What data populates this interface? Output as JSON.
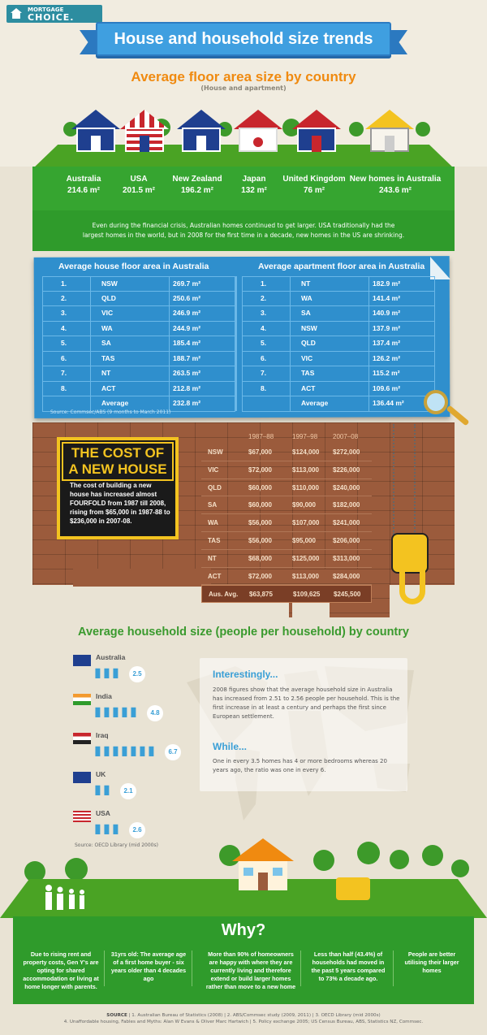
{
  "brand": {
    "line1": "MORTGAGE",
    "line2": "CHOICE."
  },
  "title": "House and household size trends",
  "floor": {
    "title": "Average floor area size by country",
    "subtitle": "(House and apartment)",
    "countries": [
      {
        "name": "Australia",
        "value": "214.6 m²",
        "flag": "australia-flag"
      },
      {
        "name": "USA",
        "value": "201.5 m²",
        "flag": "usa-flag"
      },
      {
        "name": "New Zealand",
        "value": "196.2 m²",
        "flag": "new-zealand-flag"
      },
      {
        "name": "Japan",
        "value": "132 m²",
        "flag": "japan-flag"
      },
      {
        "name": "United Kingdom",
        "value": "76 m²",
        "flag": "uk-flag"
      },
      {
        "name": "New homes in Australia",
        "value": "243.6 m²",
        "flag": "blueprint-house"
      }
    ],
    "paragraph": "Even during the financial crisis, Australian homes continued to get larger. USA traditionally had the largest homes in the world, but in 2008 for the first time in a decade, new homes in the US are shrinking."
  },
  "tables": {
    "house": {
      "title": "Average house floor area in Australia",
      "rows": [
        [
          "1.",
          "NSW",
          "269.7 m²"
        ],
        [
          "2.",
          "QLD",
          "250.6 m²"
        ],
        [
          "3.",
          "VIC",
          "246.9 m²"
        ],
        [
          "4.",
          "WA",
          "244.9 m²"
        ],
        [
          "5.",
          "SA",
          "185.4 m²"
        ],
        [
          "6.",
          "TAS",
          "188.7 m²"
        ],
        [
          "7.",
          "NT",
          "263.5 m²"
        ],
        [
          "8.",
          "ACT",
          "212.8 m²"
        ]
      ],
      "avg": [
        "",
        "Average",
        "232.8 m²"
      ]
    },
    "apartment": {
      "title": "Average apartment floor area in Australia",
      "rows": [
        [
          "1.",
          "NT",
          "182.9 m²"
        ],
        [
          "2.",
          "WA",
          "141.4 m²"
        ],
        [
          "3.",
          "SA",
          "140.9 m²"
        ],
        [
          "4.",
          "NSW",
          "137.9 m²"
        ],
        [
          "5.",
          "QLD",
          "137.4 m²"
        ],
        [
          "6.",
          "VIC",
          "126.2 m²"
        ],
        [
          "7.",
          "TAS",
          "115.2 m²"
        ],
        [
          "8.",
          "ACT",
          "109.6 m²"
        ]
      ],
      "avg": [
        "",
        "Average",
        "136.44 m²"
      ]
    },
    "source": "Source: Commsec/ABS (9 months to March 2011)"
  },
  "cost": {
    "sign_title": "THE COST OF A NEW HOUSE",
    "sign_text": "The cost of building a new house has increased almost FOURFOLD from 1987 till 2008, rising from $65,000 in 1987-88 to $236,000 in 2007-08.",
    "headers": [
      "",
      "1987–88",
      "1997–98",
      "2007–08"
    ],
    "rows": [
      [
        "NSW",
        "$67,000",
        "$124,000",
        "$272,000"
      ],
      [
        "VIC",
        "$72,000",
        "$113,000",
        "$226,000"
      ],
      [
        "QLD",
        "$60,000",
        "$110,000",
        "$240,000"
      ],
      [
        "SA",
        "$60,000",
        "$90,000",
        "$182,000"
      ],
      [
        "WA",
        "$56,000",
        "$107,000",
        "$241,000"
      ],
      [
        "TAS",
        "$56,000",
        "$95,000",
        "$206,000"
      ],
      [
        "NT",
        "$68,000",
        "$125,000",
        "$313,000"
      ],
      [
        "ACT",
        "$72,000",
        "$113,000",
        "$284,000"
      ]
    ],
    "total": [
      "Aus. Avg.",
      "$63,875",
      "$109,625",
      "$245,500"
    ]
  },
  "household": {
    "title": "Average household size (people per household) by country",
    "countries": [
      {
        "name": "Australia",
        "value": "2.5",
        "people": 2.5
      },
      {
        "name": "India",
        "value": "4.8",
        "people": 4.8
      },
      {
        "name": "Iraq",
        "value": "6.7",
        "people": 6.7
      },
      {
        "name": "UK",
        "value": "2.1",
        "people": 2.1
      },
      {
        "name": "USA",
        "value": "2.6",
        "people": 2.6
      }
    ],
    "source": "Source: OECD Library (mid 2000s)",
    "note1_title": "Interestingly...",
    "note1_text": "2008 figures show that the average household size in Australia has increased from 2.51 to 2.56 people per household. This is the first increase in at least a century and perhaps the first since European settlement.",
    "note2_title": "While...",
    "note2_text": "One in every 3.5 homes has 4 or more bedrooms whereas 20 years ago, the ratio was one in every 6."
  },
  "why": {
    "title": "Why?",
    "reasons": [
      "Due to rising rent and property costs, Gen Y's are opting for shared accommodation or living at home longer with parents.",
      "31yrs old: The average age of a first home buyer - six years older than 4 decades ago",
      "More than 90% of homeowners are happy with where they are currently living and therefore extend or build larger homes rather than move to a new home",
      "Less than half (43.4%) of households had moved in the past 5 years compared to 73% a decade ago.",
      "People are better utilising their larger homes"
    ]
  },
  "sources": {
    "label": "SOURCE",
    "line1": "| 1. Australian Bureau of Statistics (2008) | 2. ABS/Commsec study (2009, 2011) | 3. OECD Library (mid 2000s)",
    "line2": "4. Unaffordable housing, Fables and Myths: Alan W Evans & Oliver Marc Hartwich | 5. Policy exchange 2005; US Census Bureau, ABS, Statistics NZ, Commsec."
  },
  "colors": {
    "accent_blue": "#3f9fe0",
    "accent_orange": "#f08a10",
    "green": "#2f9b2b",
    "brick": "#9b5b3c",
    "sign_yellow": "#f3c320"
  }
}
